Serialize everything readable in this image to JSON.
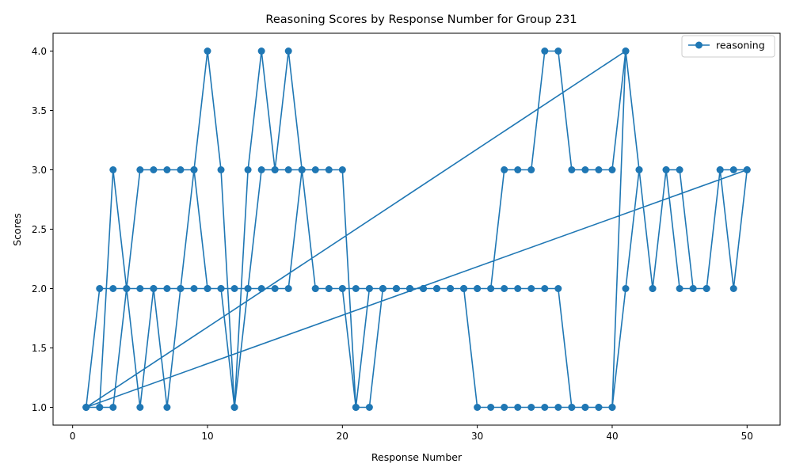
{
  "chart_data": {
    "type": "line",
    "title": "Reasoning Scores by Response Number for Group 231",
    "xlabel": "Response Number",
    "ylabel": "Scores",
    "xlim": [
      -1.45,
      52.45
    ],
    "ylim": [
      0.85,
      4.15
    ],
    "xticks": [
      0,
      10,
      20,
      30,
      40,
      50
    ],
    "yticks": [
      1.0,
      1.5,
      2.0,
      2.5,
      3.0,
      3.5,
      4.0
    ],
    "xtick_labels": [
      "0",
      "10",
      "20",
      "30",
      "40",
      "50"
    ],
    "ytick_labels": [
      "1.0",
      "1.5",
      "2.0",
      "2.5",
      "3.0",
      "3.5",
      "4.0"
    ],
    "grid": false,
    "legend_position": "top-right",
    "series": [
      {
        "name": "reasoning",
        "color": "#1f77b4",
        "marker": "circle",
        "x": [
          1,
          2,
          3,
          4,
          5,
          6,
          7,
          8,
          9,
          10,
          11,
          12,
          13,
          14,
          15,
          16,
          17,
          18,
          19,
          20,
          21,
          22,
          23,
          24,
          25,
          26,
          27,
          28,
          29,
          30,
          31,
          32,
          33,
          34,
          35,
          36,
          37,
          38,
          39,
          40,
          41,
          1,
          2,
          3,
          4,
          5,
          6,
          7,
          8,
          9,
          10,
          11,
          12,
          13,
          14,
          15,
          16,
          17,
          18,
          19,
          20,
          21,
          22,
          23,
          24,
          25,
          26,
          27,
          28,
          29,
          30,
          31,
          32,
          33,
          34,
          35,
          36,
          37,
          38,
          39,
          40,
          41,
          42,
          43,
          44,
          45,
          46,
          47,
          48,
          49,
          50,
          1,
          2,
          3,
          4,
          5,
          6,
          7,
          8,
          9,
          10,
          11,
          12,
          13,
          14,
          15,
          16,
          17,
          18,
          19,
          20,
          21,
          22,
          23,
          24,
          25,
          26,
          27,
          28,
          29,
          30,
          31,
          32,
          33,
          34,
          35,
          36,
          37,
          38,
          39,
          40,
          41,
          42,
          43,
          44,
          45,
          46,
          47,
          48,
          49,
          50
        ],
        "y": [
          1,
          2,
          2,
          2,
          3,
          3,
          3,
          3,
          3,
          4,
          3,
          1,
          3,
          4,
          3,
          4,
          3,
          3,
          3,
          3,
          1,
          1,
          2,
          2,
          2,
          2,
          2,
          2,
          2,
          2,
          2,
          3,
          3,
          3,
          4,
          4,
          3,
          3,
          3,
          3,
          4,
          1,
          1,
          3,
          2,
          2,
          2,
          2,
          2,
          3,
          2,
          2,
          2,
          2,
          2,
          2,
          2,
          3,
          2,
          2,
          2,
          2,
          2,
          2,
          2,
          2,
          2,
          2,
          2,
          2,
          1,
          1,
          1,
          1,
          1,
          1,
          1,
          1,
          1,
          1,
          1,
          2,
          3,
          2,
          3,
          2,
          2,
          2,
          3,
          2,
          3,
          1,
          1,
          1,
          2,
          1,
          2,
          1,
          2,
          2,
          2,
          2,
          1,
          2,
          3,
          3,
          3,
          3,
          2,
          2,
          2,
          1,
          2,
          2,
          2,
          2,
          2,
          2,
          2,
          2,
          2,
          2,
          2,
          2,
          2,
          2,
          2,
          1,
          1,
          1,
          1,
          4,
          3,
          2,
          3,
          3,
          2,
          2,
          3,
          3,
          3
        ]
      }
    ]
  }
}
